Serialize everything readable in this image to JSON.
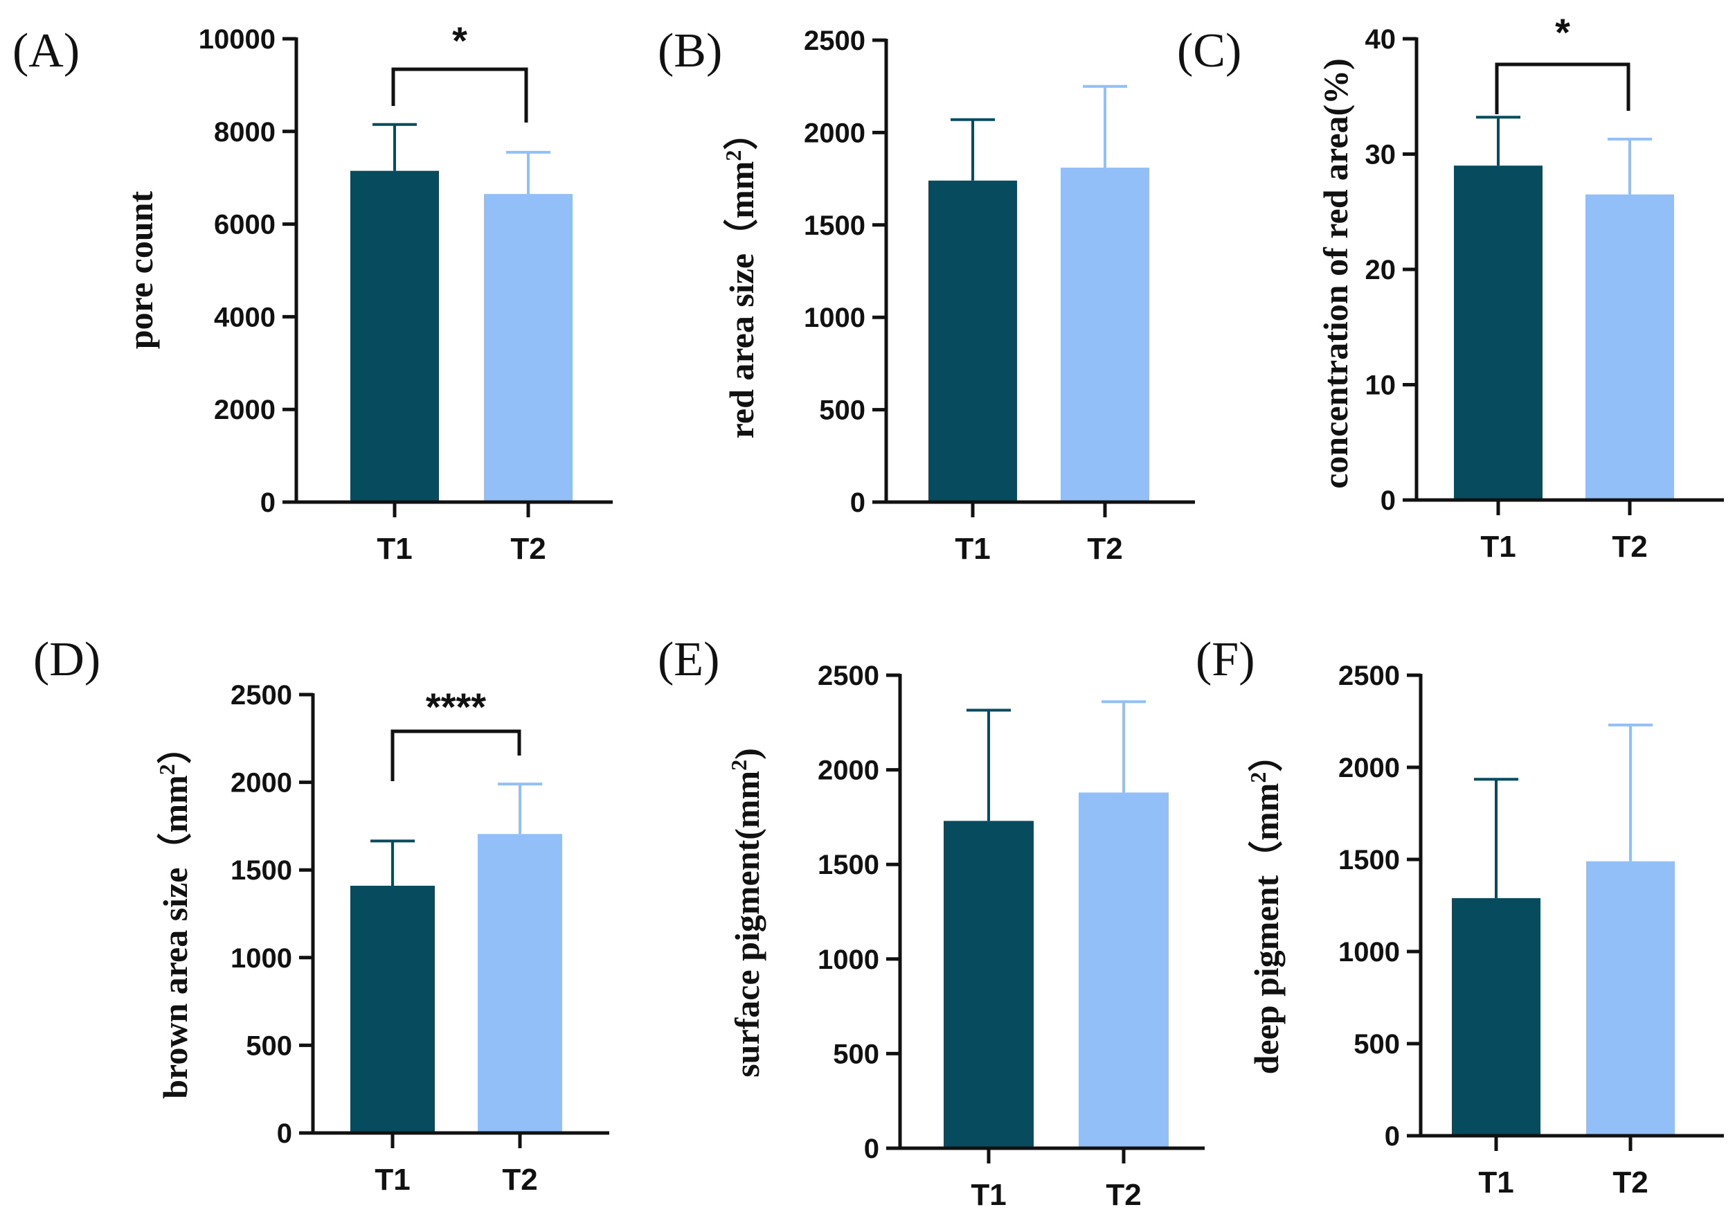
{
  "colors": {
    "T1": "#064b5e",
    "T2": "#93bff8",
    "axis": "#111111"
  },
  "chart_data": [
    {
      "panel": "(A)",
      "type": "bar",
      "categories": [
        "T1",
        "T2"
      ],
      "values": [
        7150,
        6650
      ],
      "errors": [
        1000,
        900
      ],
      "ylabel": "pore count",
      "ylabel_sup": "",
      "ylabel_tail": "",
      "ylim": [
        0,
        10000
      ],
      "yticks": [
        0,
        2000,
        4000,
        6000,
        8000,
        10000
      ],
      "significance": "*"
    },
    {
      "panel": "(B)",
      "type": "bar",
      "categories": [
        "T1",
        "T2"
      ],
      "values": [
        1740,
        1810
      ],
      "errors": [
        330,
        440
      ],
      "ylabel": "red area size（mm",
      "ylabel_sup": "2",
      "ylabel_tail": "）",
      "ylim": [
        0,
        2500
      ],
      "yticks": [
        0,
        500,
        1000,
        1500,
        2000,
        2500
      ],
      "significance": ""
    },
    {
      "panel": "(C)",
      "type": "bar",
      "categories": [
        "T1",
        "T2"
      ],
      "values": [
        29,
        26.5
      ],
      "errors": [
        4.2,
        4.8
      ],
      "ylabel": "concentration of red area(%)",
      "ylabel_sup": "",
      "ylabel_tail": "",
      "ylim": [
        0,
        40
      ],
      "yticks": [
        0,
        10,
        20,
        30,
        40
      ],
      "significance": "*"
    },
    {
      "panel": "(D)",
      "type": "bar",
      "categories": [
        "T1",
        "T2"
      ],
      "values": [
        1410,
        1705
      ],
      "errors": [
        255,
        285
      ],
      "ylabel": "brown area size（mm",
      "ylabel_sup": "2",
      "ylabel_tail": "）",
      "ylim": [
        0,
        2500
      ],
      "yticks": [
        0,
        500,
        1000,
        1500,
        2000,
        2500
      ],
      "significance": "****"
    },
    {
      "panel": "(E)",
      "type": "bar",
      "categories": [
        "T1",
        "T2"
      ],
      "values": [
        1730,
        1880
      ],
      "errors": [
        585,
        480
      ],
      "ylabel": "surface pigment(mm",
      "ylabel_sup": "2",
      "ylabel_tail": ")",
      "ylim": [
        0,
        2500
      ],
      "yticks": [
        0,
        500,
        1000,
        1500,
        2000,
        2500
      ],
      "significance": ""
    },
    {
      "panel": "(F)",
      "type": "bar",
      "categories": [
        "T1",
        "T2"
      ],
      "values": [
        1290,
        1490
      ],
      "errors": [
        645,
        740
      ],
      "ylabel": "deep pigment（mm",
      "ylabel_sup": "2",
      "ylabel_tail": "）",
      "ylim": [
        0,
        2500
      ],
      "yticks": [
        0,
        500,
        1000,
        1500,
        2000,
        2500
      ],
      "significance": ""
    }
  ]
}
